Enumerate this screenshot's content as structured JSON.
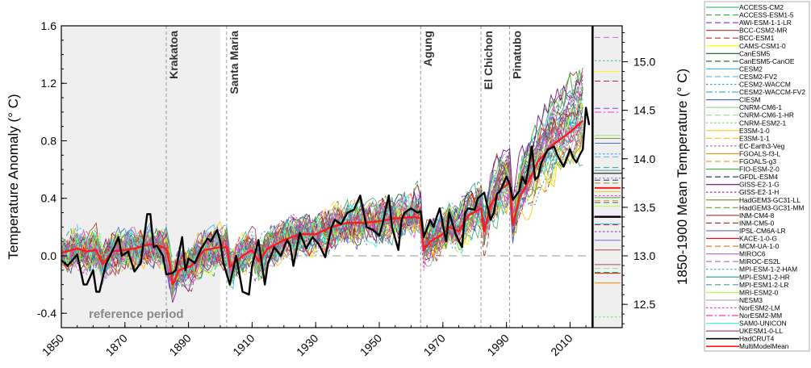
{
  "chart_data": {
    "type": "line",
    "ylabel": "Temperature Anomaly (° C)",
    "ylabel_right": "1850-1900 Mean Temperature (° C)",
    "xlim": [
      1850,
      2017
    ],
    "ylim": [
      -0.5,
      1.6
    ],
    "ylim_right": [
      12.26,
      15.37
    ],
    "x_ticks": [
      "1850",
      "1870",
      "1890",
      "1910",
      "1930",
      "1950",
      "1970",
      "1990",
      "2010"
    ],
    "y_ticks": [
      "-0.4",
      "0.0",
      "0.4",
      "0.8",
      "1.2",
      "1.6"
    ],
    "y_ticks_right": [
      "12.5",
      "13.0",
      "13.5",
      "14.0",
      "14.5",
      "15.0"
    ],
    "reference_period": {
      "label": "reference period",
      "start": 1850,
      "end": 1900,
      "color": "#efefef"
    },
    "zero_line": true,
    "volcanoes": [
      {
        "name": "Krakatoa",
        "year": 1883
      },
      {
        "name": "Santa Maria",
        "year": 1902
      },
      {
        "name": "Agung",
        "year": 1963
      },
      {
        "name": "El Chichon",
        "year": 1982
      },
      {
        "name": "Pinatubo",
        "year": 1991
      }
    ],
    "series": [
      {
        "name": "HadCRUT4",
        "color": "#000000",
        "style": "solid",
        "width": 2.4,
        "x": [
          1850,
          1852,
          1855,
          1857,
          1858,
          1860,
          1861,
          1862,
          1864,
          1866,
          1868,
          1869,
          1871,
          1873,
          1875,
          1877,
          1878,
          1879,
          1880,
          1882,
          1883,
          1885,
          1886,
          1888,
          1889,
          1890,
          1892,
          1894,
          1896,
          1897,
          1899,
          1900,
          1901,
          1903,
          1905,
          1907,
          1909,
          1910,
          1912,
          1914,
          1915,
          1917,
          1919,
          1921,
          1922,
          1923,
          1925,
          1927,
          1929,
          1931,
          1933,
          1935,
          1936,
          1938,
          1940,
          1942,
          1944,
          1946,
          1948,
          1950,
          1951,
          1953,
          1954,
          1956,
          1957,
          1958,
          1960,
          1962,
          1963,
          1964,
          1966,
          1967,
          1969,
          1971,
          1972,
          1974,
          1976,
          1977,
          1978,
          1980,
          1981,
          1983,
          1985,
          1986,
          1987,
          1988,
          1990,
          1991,
          1992,
          1994,
          1995,
          1996,
          1997,
          1998,
          1999,
          2000,
          2001,
          2003,
          2005,
          2006,
          2008,
          2009,
          2010,
          2011,
          2012,
          2013,
          2014,
          2015,
          2016
        ],
        "y": [
          -0.03,
          -0.07,
          0.01,
          -0.2,
          -0.2,
          -0.1,
          -0.25,
          -0.25,
          -0.06,
          0.03,
          0.13,
          0.0,
          0.03,
          -0.11,
          -0.05,
          0.29,
          0.29,
          0.06,
          0.07,
          0.0,
          -0.13,
          -0.12,
          -0.1,
          0.13,
          -0.1,
          -0.02,
          -0.05,
          0.05,
          0.12,
          0.1,
          0.18,
          0.1,
          -0.05,
          -0.2,
          0.0,
          -0.25,
          -0.27,
          -0.07,
          0.11,
          -0.2,
          -0.05,
          0.06,
          0.0,
          0.11,
          0.07,
          -0.07,
          0.16,
          0.05,
          0.13,
          0.08,
          -0.01,
          0.2,
          0.25,
          0.22,
          0.3,
          0.32,
          0.42,
          0.2,
          0.18,
          0.14,
          0.22,
          0.42,
          0.2,
          0.04,
          0.25,
          0.3,
          0.33,
          0.3,
          0.31,
          0.13,
          0.25,
          0.2,
          0.33,
          0.1,
          0.3,
          0.15,
          0.06,
          0.3,
          0.33,
          0.32,
          0.4,
          0.44,
          0.25,
          0.3,
          0.43,
          0.45,
          0.55,
          0.5,
          0.39,
          0.45,
          0.55,
          0.5,
          0.62,
          0.76,
          0.53,
          0.55,
          0.65,
          0.74,
          0.76,
          0.7,
          0.62,
          0.68,
          0.74,
          0.68,
          0.65,
          0.7,
          0.74,
          1.03,
          0.91
        ]
      },
      {
        "name": "MultiModelMean",
        "color": "#ff1a1a",
        "style": "solid",
        "width": 2.4,
        "x": [
          1850,
          1855,
          1858,
          1861,
          1863,
          1866,
          1870,
          1873,
          1878,
          1882,
          1883,
          1884,
          1885,
          1887,
          1891,
          1895,
          1900,
          1902,
          1903,
          1907,
          1910,
          1912,
          1915,
          1920,
          1925,
          1930,
          1935,
          1940,
          1945,
          1950,
          1955,
          1961,
          1963,
          1964,
          1966,
          1970,
          1972,
          1975,
          1978,
          1982,
          1983,
          1985,
          1988,
          1990,
          1991,
          1992,
          1994,
          1997,
          2000,
          2005,
          2010,
          2014
        ],
        "y": [
          0.02,
          0.05,
          0.03,
          0.04,
          -0.06,
          0.03,
          0.04,
          0.05,
          0.08,
          0.06,
          0.05,
          -0.05,
          -0.2,
          -0.1,
          -0.07,
          0.04,
          0.06,
          0.06,
          -0.08,
          0.0,
          0.04,
          -0.04,
          0.05,
          0.11,
          0.15,
          0.15,
          0.2,
          0.23,
          0.23,
          0.24,
          0.26,
          0.27,
          0.26,
          0.04,
          0.1,
          0.15,
          0.2,
          0.17,
          0.28,
          0.33,
          0.17,
          0.35,
          0.46,
          0.49,
          0.52,
          0.21,
          0.4,
          0.52,
          0.66,
          0.78,
          0.86,
          0.94
        ]
      }
    ],
    "model_mean_temperatures": [
      {
        "model": "MIROC-ES2L",
        "value": 15.25
      },
      {
        "model": "MPI-ESM-1-2-HAM",
        "value": 15.01
      },
      {
        "model": "CAMS-CSM1-0",
        "value": 14.9
      },
      {
        "model": "BCC-ESM1",
        "value": 14.8
      },
      {
        "model": "AWI-ESM-1-1-LR",
        "value": 14.52
      },
      {
        "model": "NorESM2-MM",
        "value": 14.48
      },
      {
        "model": "CNRM-CM6-1",
        "value": 14.24
      },
      {
        "model": "HadGEM3-GC31-LL",
        "value": 14.21
      },
      {
        "model": "CIESM",
        "value": 14.16
      },
      {
        "model": "CESM2-WACCM",
        "value": 14.05
      },
      {
        "model": "CESM2-FV2",
        "value": 14.02
      },
      {
        "model": "MPI-ESM1-2-LR",
        "value": 13.91
      },
      {
        "model": "MPI-ESM1-2-HR",
        "value": 13.88
      },
      {
        "model": "EC-Earth3-Veg",
        "value": 13.8
      },
      {
        "model": "GFDL-ESM4",
        "value": 13.78
      },
      {
        "model": "HadGEM3-GC31-MM",
        "value": 13.75
      },
      {
        "model": "MultiModelMean",
        "value": 13.7
      },
      {
        "model": "E3SM-1-0",
        "value": 13.66
      },
      {
        "model": "NorESM2-LM",
        "value": 13.62
      },
      {
        "model": "FIO-ESM-2-0",
        "value": 13.6
      },
      {
        "model": "FGOALS-g3",
        "value": 13.57
      },
      {
        "model": "CanESM5-CanOE",
        "value": 13.55
      },
      {
        "model": "MRI-ESM2-0",
        "value": 13.51
      },
      {
        "model": "GISS-E2-1-G",
        "value": 13.41
      },
      {
        "model": "HadCRUT4",
        "value": 13.4
      },
      {
        "model": "CESM2",
        "value": 13.33
      },
      {
        "model": "INM-CM5-0",
        "value": 13.32
      },
      {
        "model": "GISS-E2-1-H",
        "value": 13.25
      },
      {
        "model": "IPSL-CM6A-LR",
        "value": 13.16
      },
      {
        "model": "BCC-CSM2-MR",
        "value": 13.06
      },
      {
        "model": "INM-CM4-8",
        "value": 12.91
      },
      {
        "model": "CNRM-CM6-1-HR",
        "value": 12.87
      },
      {
        "model": "ACCESS-ESM1-5",
        "value": 12.83
      },
      {
        "model": "KACE-1-0-G",
        "value": 12.82
      },
      {
        "model": "FGOALS-f3-L",
        "value": 12.72
      },
      {
        "model": "CNRM-ESM2-1",
        "value": 12.37
      }
    ],
    "observed_range_box": [
      13.4,
      13.85
    ],
    "legend_position": "right",
    "legend": [
      {
        "name": "ACCESS-CM2",
        "color": "#4cbb78",
        "style": "solid"
      },
      {
        "name": "ACCESS-ESM1-5",
        "color": "#22b04a",
        "style": "dashed"
      },
      {
        "name": "AWI-ESM-1-1-LR",
        "color": "#9b30ff",
        "style": "dashed"
      },
      {
        "name": "BCC-CSM2-MR",
        "color": "#b04a4a",
        "style": "solid"
      },
      {
        "name": "BCC-ESM1",
        "color": "#a83232",
        "style": "dashed"
      },
      {
        "name": "CAMS-CSM1-0",
        "color": "#ffff00",
        "style": "solid"
      },
      {
        "name": "CanESM5",
        "color": "#1e5a2e",
        "style": "solid"
      },
      {
        "name": "CanESM5-CanOE",
        "color": "#2e6b3a",
        "style": "dashed"
      },
      {
        "name": "CESM2",
        "color": "#4db8e8",
        "style": "solid"
      },
      {
        "name": "CESM2-FV2",
        "color": "#4db8e8",
        "style": "dashed"
      },
      {
        "name": "CESM2-WACCM",
        "color": "#2aa8e0",
        "style": "dotted"
      },
      {
        "name": "CESM2-WACCM-FV2",
        "color": "#2aa8e0",
        "style": "dashdot"
      },
      {
        "name": "CIESM",
        "color": "#4a6fd4",
        "style": "solid"
      },
      {
        "name": "CNRM-CM6-1",
        "color": "#90e090",
        "style": "solid"
      },
      {
        "name": "CNRM-CM6-1-HR",
        "color": "#90e090",
        "style": "dashed"
      },
      {
        "name": "CNRM-ESM2-1",
        "color": "#7de07d",
        "style": "dotted"
      },
      {
        "name": "E3SM-1-0",
        "color": "#ffc820",
        "style": "solid"
      },
      {
        "name": "E3SM-1-1",
        "color": "#ffc820",
        "style": "dashed"
      },
      {
        "name": "EC-Earth3-Veg",
        "color": "#8a70d0",
        "style": "dotted"
      },
      {
        "name": "FGOALS-f3-L",
        "color": "#ff8c00",
        "style": "solid"
      },
      {
        "name": "FGOALS-g3",
        "color": "#ff9a30",
        "style": "dashed"
      },
      {
        "name": "FIO-ESM-2-0",
        "color": "#3cb03c",
        "style": "solid"
      },
      {
        "name": "GFDL-ESM4",
        "color": "#2a3a70",
        "style": "dashed"
      },
      {
        "name": "GISS-E2-1-G",
        "color": "#7a1a8a",
        "style": "solid"
      },
      {
        "name": "GISS-E2-1-H",
        "color": "#8a2a9a",
        "style": "dotted"
      },
      {
        "name": "HadGEM3-GC31-LL",
        "color": "#7a9a20",
        "style": "solid"
      },
      {
        "name": "HadGEM3-GC31-MM",
        "color": "#7a9a20",
        "style": "dashed"
      },
      {
        "name": "INM-CM4-8",
        "color": "#b04848",
        "style": "solid"
      },
      {
        "name": "INM-CM5-0",
        "color": "#a83a3a",
        "style": "dashed"
      },
      {
        "name": "IPSL-CM6A-LR",
        "color": "#6a6ad0",
        "style": "solid"
      },
      {
        "name": "KACE-1-0-G",
        "color": "#e01010",
        "style": "solid"
      },
      {
        "name": "MCM-UA-1-0",
        "color": "#d07030",
        "style": "dashed"
      },
      {
        "name": "MIROC6",
        "color": "#c070d0",
        "style": "solid"
      },
      {
        "name": "MIROC-ES2L",
        "color": "#c070d0",
        "style": "dashed"
      },
      {
        "name": "MPI-ESM-1-2-HAM",
        "color": "#40b0b0",
        "style": "dotted"
      },
      {
        "name": "MPI-ESM1-2-HR",
        "color": "#40a0a0",
        "style": "solid"
      },
      {
        "name": "MPI-ESM1-2-LR",
        "color": "#40a0a0",
        "style": "dashed"
      },
      {
        "name": "MRI-ESM2-0",
        "color": "#b0ff40",
        "style": "solid"
      },
      {
        "name": "NESM3",
        "color": "#b0b0b0",
        "style": "solid"
      },
      {
        "name": "NorESM2-LM",
        "color": "#ff30c0",
        "style": "dotted"
      },
      {
        "name": "NorESM2-MM",
        "color": "#ff30c0",
        "style": "dashdot"
      },
      {
        "name": "SAM0-UNICON",
        "color": "#30ffd0",
        "style": "solid"
      },
      {
        "name": "UKESM1-0-LL",
        "color": "#a05080",
        "style": "solid"
      },
      {
        "name": "HadCRUT4",
        "color": "#000000",
        "style": "solid"
      },
      {
        "name": "MultiModelMean",
        "color": "#ff1a1a",
        "style": "solid"
      }
    ]
  }
}
